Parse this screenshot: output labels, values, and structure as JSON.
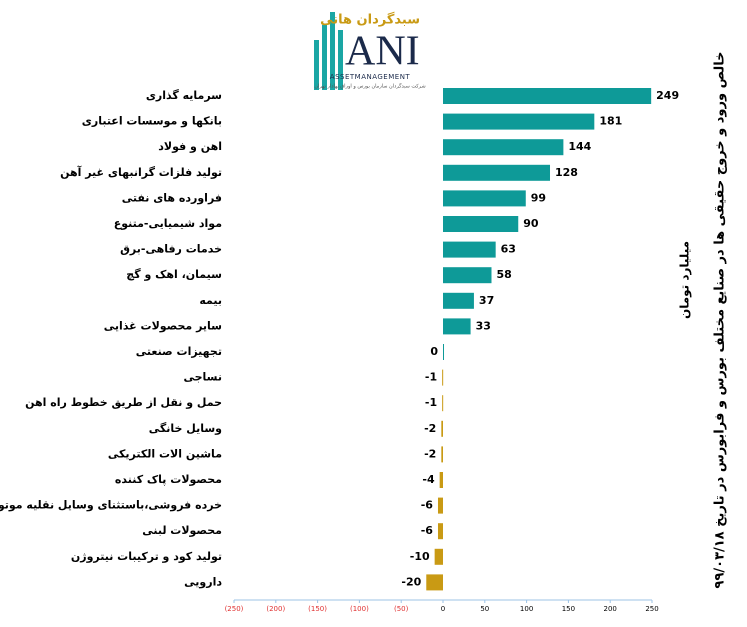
{
  "logo": {
    "brand": "سبدگردان هانی",
    "mark": "ANI",
    "tagline": "ASSETMANAGEMENT",
    "subline": "شرکت سبدگردان سازمان بورس و اوراق بهادار تهران"
  },
  "chart_data": {
    "type": "hbar",
    "title": "خالص ورود و خروج حقیقی ها در صنایع مختلف بورس و فرابورس در تاریخ ۹۹/۰۳/۱۸",
    "x_label": "میلیارد تومان",
    "categories": [
      "سرمایه گذاری",
      "بانکها و موسسات اعتباری",
      "اهن و فولاد",
      "تولید فلزات گرانبهای غیر آهن",
      "فراورده های نفتی",
      "مواد شیمیایی-متنوع",
      "خدمات رفاهی-برق",
      "سیمان، اهک و گچ",
      "بیمه",
      "سایر محصولات غذایی",
      "تجهیزات صنعتی",
      "نساجی",
      "حمل و نقل از طریق خطوط راه اهن",
      "وسایل خانگی",
      "ماشین الات الکتریکی",
      "محصولات پاک کننده",
      "خرده فروشی،باستثنای وسایل نقلیه موتوری",
      "محصولات لبنی",
      "تولید کود و ترکیبات نیتروژن",
      "دارویی"
    ],
    "values": [
      249,
      181,
      144,
      128,
      99,
      90,
      63,
      58,
      37,
      33,
      0,
      -1,
      -1,
      -2,
      -2,
      -4,
      -6,
      -6,
      -10,
      -20
    ],
    "positive_color": "#0e9a98",
    "negative_color": "#c99a14",
    "negative_tick_color": "#e03030",
    "xlim": [
      -250,
      250
    ],
    "xticks": [
      {
        "value": -250,
        "label": "(250)"
      },
      {
        "value": -200,
        "label": "(200)"
      },
      {
        "value": -150,
        "label": "(150)"
      },
      {
        "value": -100,
        "label": "(100)"
      },
      {
        "value": -50,
        "label": "(50)"
      },
      0,
      50,
      100,
      150,
      200,
      250
    ]
  }
}
